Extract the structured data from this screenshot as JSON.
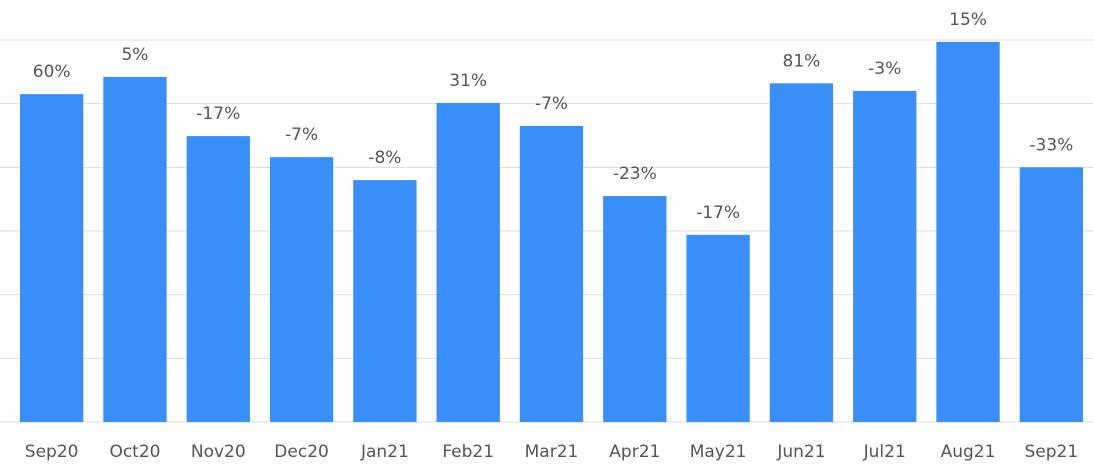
{
  "chart_data": {
    "type": "bar",
    "categories": [
      "Sep20",
      "Oct20",
      "Nov20",
      "Dec20",
      "Jan21",
      "Feb21",
      "Mar21",
      "Apr21",
      "May21",
      "Jun21",
      "Jul21",
      "Aug21",
      "Sep21"
    ],
    "values": [
      5.15,
      5.42,
      4.49,
      4.16,
      3.8,
      5.01,
      4.65,
      3.55,
      2.94,
      5.32,
      5.2,
      5.97,
      4.0
    ],
    "bar_labels": [
      "60%",
      "5%",
      "-17%",
      "-7%",
      "-8%",
      "31%",
      "-7%",
      "-23%",
      "-17%",
      "81%",
      "-3%",
      "15%",
      "-33%"
    ],
    "color": "#3a8ef7",
    "ylim": [
      0,
      6
    ],
    "yticks": [
      0,
      1,
      2,
      3,
      4,
      5,
      6
    ],
    "grid": true
  }
}
